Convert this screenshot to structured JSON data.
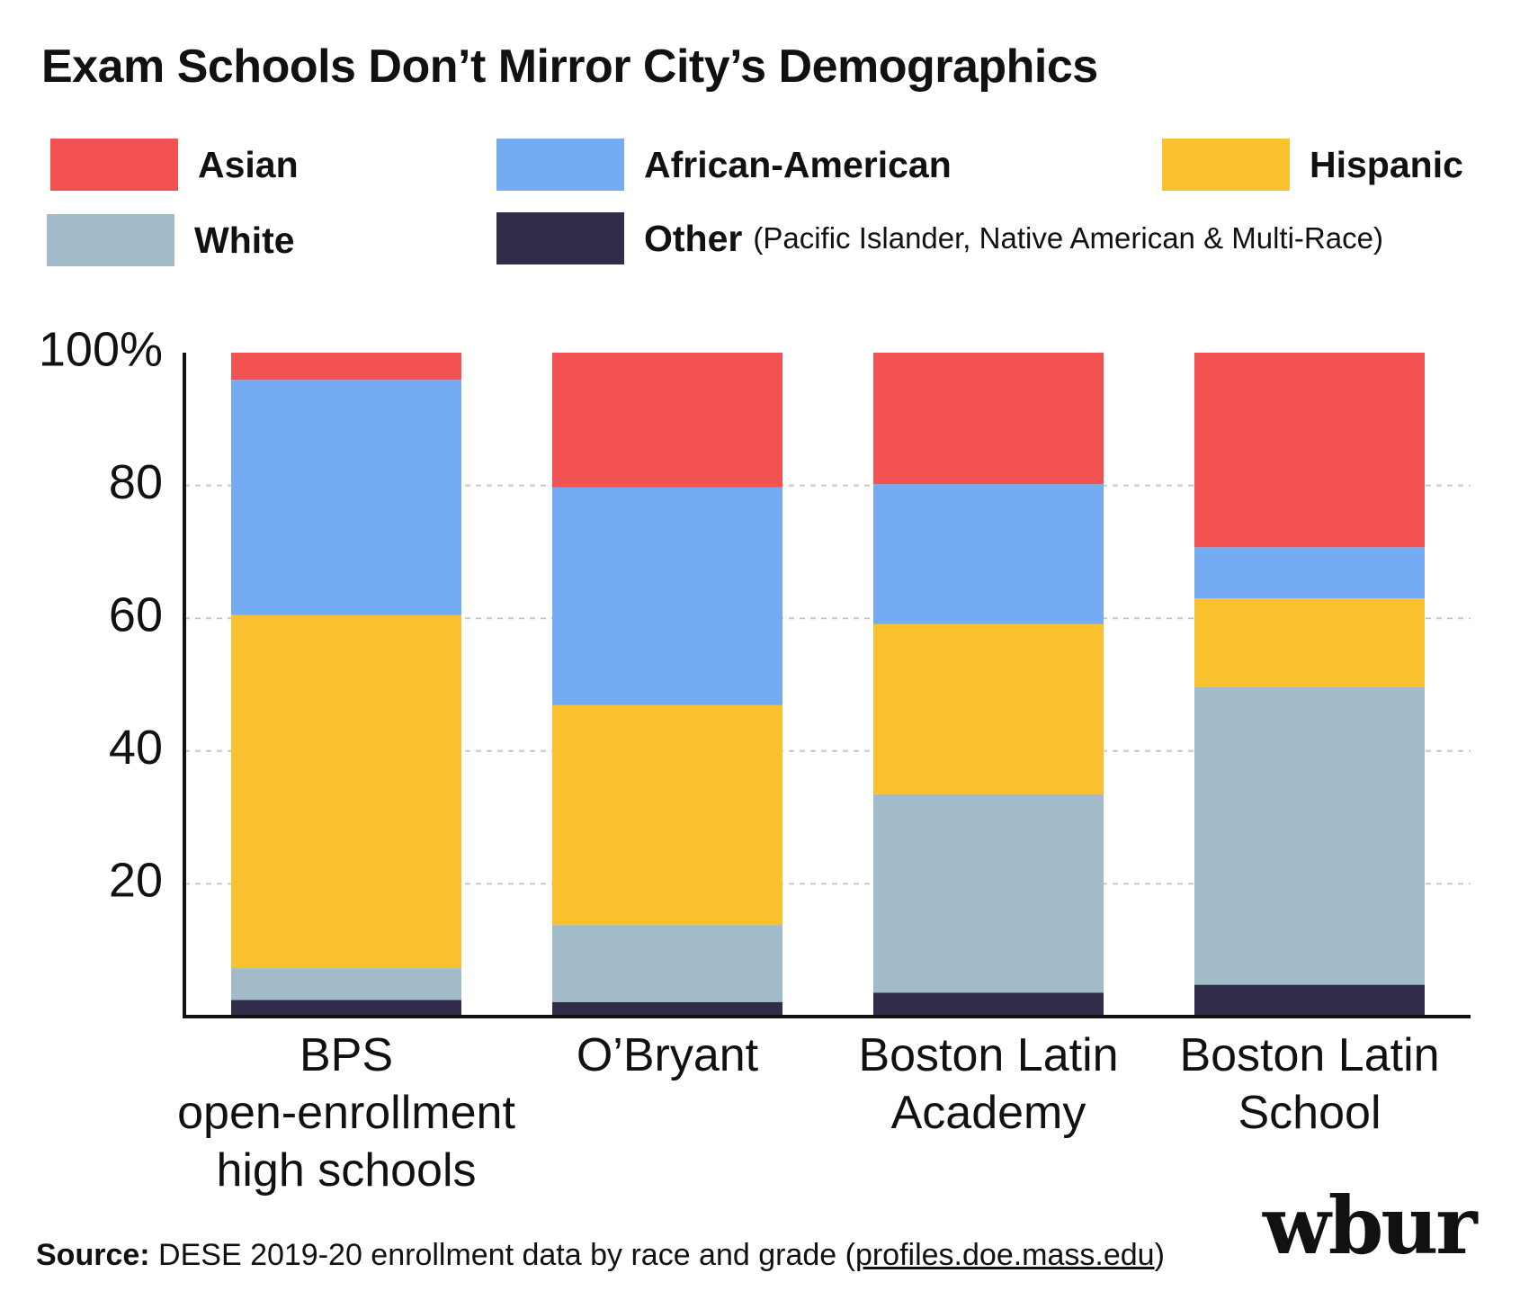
{
  "title": "Exam Schools Don’t Mirror City’s Demographics",
  "legend": {
    "asian": {
      "label": "Asian",
      "color": "#f25252"
    },
    "african_american": {
      "label": "African-American",
      "color": "#74abf2"
    },
    "hispanic": {
      "label": "Hispanic",
      "color": "#fac12f"
    },
    "white": {
      "label": "White",
      "color": "#a1bbc8"
    },
    "other": {
      "label": "Other",
      "note": "(Pacific Islander, Native American & Multi-Race)",
      "color": "#312c4a"
    }
  },
  "chart_data": {
    "type": "bar",
    "stacked": true,
    "categories": [
      [
        "BPS",
        "open-enrollment",
        "high schools"
      ],
      [
        "O’Bryant"
      ],
      [
        "Boston Latin",
        "Academy"
      ],
      [
        "Boston Latin",
        "School"
      ]
    ],
    "series": [
      {
        "name": "Other",
        "color": "#312c4a",
        "values": [
          2.5,
          2.2,
          3.6,
          4.8
        ]
      },
      {
        "name": "White",
        "color": "#a1bbc8",
        "values": [
          4.8,
          11.6,
          29.9,
          44.8
        ]
      },
      {
        "name": "Hispanic",
        "color": "#fac12f",
        "values": [
          53.2,
          33.1,
          25.6,
          13.4
        ]
      },
      {
        "name": "African-American",
        "color": "#74abf2",
        "values": [
          35.4,
          32.8,
          21.1,
          7.7
        ]
      },
      {
        "name": "Asian",
        "color": "#f25252",
        "values": [
          4.1,
          20.3,
          19.8,
          29.3
        ]
      }
    ],
    "yticks": [
      "100%",
      "80",
      "60",
      "40",
      "20"
    ],
    "ytick_values": [
      100,
      80,
      60,
      40,
      20
    ],
    "ylim": [
      0,
      100
    ],
    "grid": "horizontal dashed",
    "legend_position": "top"
  },
  "footer": {
    "source_label": "Source:",
    "source_text": " DESE 2019-20 enrollment data by race and grade (",
    "source_link": "profiles.doe.mass.edu",
    "source_close": ")"
  },
  "logo": "wbur"
}
